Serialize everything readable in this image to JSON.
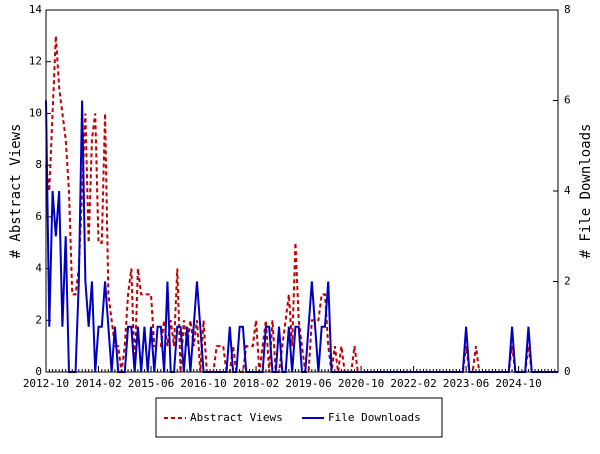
{
  "chart_data": {
    "type": "line",
    "y_label": "# Abstract Views",
    "y2_label": "# File Downloads",
    "categories": [
      "2012-10",
      null,
      null,
      null,
      null,
      null,
      null,
      null,
      null,
      null,
      null,
      null,
      null,
      null,
      null,
      null,
      "2014-02",
      null,
      null,
      null,
      null,
      null,
      null,
      null,
      null,
      null,
      null,
      null,
      null,
      null,
      null,
      null,
      "2015-06",
      null,
      null,
      null,
      null,
      null,
      null,
      null,
      null,
      null,
      null,
      null,
      null,
      null,
      null,
      null,
      "2016-10",
      null,
      null,
      null,
      null,
      null,
      null,
      null,
      null,
      null,
      null,
      null,
      null,
      null,
      null,
      null,
      "2018-02",
      null,
      null,
      null,
      null,
      null,
      null,
      null,
      null,
      null,
      null,
      null,
      null,
      null,
      null,
      null,
      "2019-06",
      null,
      null,
      null,
      null,
      null,
      null,
      null,
      null,
      null,
      null,
      null,
      null,
      null,
      null,
      null,
      "2020-10",
      null,
      null,
      null,
      null,
      null,
      null,
      null,
      null,
      null,
      null,
      null,
      null,
      null,
      null,
      null,
      "2022-02",
      null,
      null,
      null,
      null,
      null,
      null,
      null,
      null,
      null,
      null,
      null,
      null,
      null,
      null,
      null,
      "2023-06",
      null,
      null,
      null,
      null,
      null,
      null,
      null,
      null,
      null,
      null,
      null,
      null,
      null,
      null,
      null,
      "2024-10",
      null,
      null,
      null,
      null,
      null,
      null,
      null,
      null,
      null,
      null,
      null,
      null
    ],
    "series": [
      {
        "name": "Abstract Views",
        "color": "#c00000",
        "dash": true,
        "axis": "y",
        "values": [
          8,
          7,
          10,
          13,
          11,
          10,
          9,
          7,
          3,
          3,
          4,
          7,
          10,
          5,
          9,
          10,
          5,
          5,
          10,
          3,
          2,
          1,
          1,
          0,
          1,
          3,
          4,
          0,
          4,
          3,
          3,
          3,
          3,
          1,
          1,
          1,
          2,
          1,
          2,
          1,
          4,
          0,
          2,
          1,
          2,
          1,
          2,
          0,
          2,
          0,
          0,
          0,
          1,
          1,
          1,
          0,
          0,
          1,
          0,
          0,
          0,
          1,
          1,
          1,
          2,
          0,
          1,
          2,
          0,
          2,
          0,
          0,
          1,
          2,
          3,
          1,
          5,
          2,
          1,
          0,
          0,
          2,
          2,
          2,
          3,
          3,
          1,
          0,
          1,
          0,
          1,
          0,
          0,
          0,
          1,
          0,
          0,
          0,
          0,
          0,
          0,
          0,
          0,
          0,
          0,
          0,
          0,
          0,
          0,
          0,
          0,
          0,
          0,
          0,
          0,
          0,
          0,
          0,
          0,
          0,
          0,
          0,
          0,
          0,
          0,
          0,
          0,
          0,
          1,
          0,
          0,
          1,
          0,
          0,
          0,
          0,
          0,
          0,
          0,
          0,
          0,
          0,
          1,
          0,
          0,
          0,
          0,
          1,
          0,
          0,
          0,
          0,
          0,
          0,
          0,
          0,
          0
        ]
      },
      {
        "name": "File Downloads",
        "color": "#0000c0",
        "dash": false,
        "axis": "y2",
        "values": [
          6,
          1,
          4,
          3,
          4,
          1,
          3,
          0,
          0,
          0,
          2,
          6,
          2,
          1,
          2,
          0,
          1,
          1,
          2,
          1,
          0,
          1,
          0,
          0,
          0,
          1,
          1,
          0,
          1,
          0,
          1,
          0,
          1,
          0,
          1,
          1,
          0,
          2,
          0,
          0,
          1,
          1,
          0,
          1,
          0,
          1,
          2,
          1,
          0,
          0,
          0,
          0,
          0,
          0,
          0,
          0,
          1,
          0,
          0,
          1,
          1,
          0,
          0,
          0,
          0,
          0,
          0,
          1,
          1,
          0,
          0,
          1,
          0,
          0,
          1,
          0,
          1,
          1,
          0,
          0,
          1,
          2,
          1,
          0,
          1,
          1,
          2,
          0,
          0,
          0,
          0,
          0,
          0,
          0,
          0,
          0,
          0,
          0,
          0,
          0,
          0,
          0,
          0,
          0,
          0,
          0,
          0,
          0,
          0,
          0,
          0,
          0,
          0,
          0,
          0,
          0,
          0,
          0,
          0,
          0,
          0,
          0,
          0,
          0,
          0,
          0,
          0,
          0,
          1,
          0,
          0,
          0,
          0,
          0,
          0,
          0,
          0,
          0,
          0,
          0,
          0,
          0,
          1,
          0,
          0,
          0,
          0,
          1,
          0,
          0,
          0,
          0,
          0,
          0,
          0,
          0,
          0
        ]
      }
    ],
    "ylim": [
      0,
      14
    ],
    "yticks": [
      0,
      2,
      4,
      6,
      8,
      10,
      12,
      14
    ],
    "y2lim": [
      0,
      8
    ],
    "y2ticks": [
      0,
      2,
      4,
      6,
      8
    ],
    "legend": "bottom",
    "grid": false
  }
}
